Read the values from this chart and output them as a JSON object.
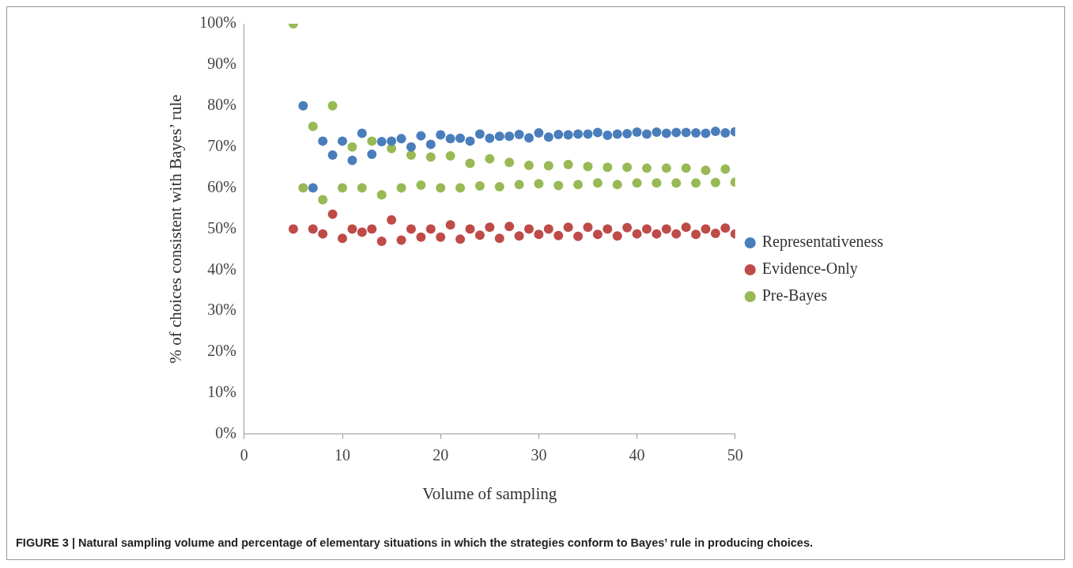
{
  "chart_data": {
    "type": "scatter",
    "xlabel": "Volume of sampling",
    "ylabel": "% of choices consistent with Bayes’ rule",
    "annotations": [
      "FIGURE 3 | Natural sampling volume and percentage of elementary situations in which the strategies conform to Bayes’ rule in producing choices."
    ],
    "xlim": [
      0,
      50
    ],
    "xticks": [
      0,
      10,
      20,
      30,
      40,
      50
    ],
    "ylim": [
      0,
      100
    ],
    "yticks": [
      {
        "value": 0,
        "label": "0%"
      },
      {
        "value": 10,
        "label": "10%"
      },
      {
        "value": 20,
        "label": "20%"
      },
      {
        "value": 30,
        "label": "30%"
      },
      {
        "value": 40,
        "label": "40%"
      },
      {
        "value": 50,
        "label": "50%"
      },
      {
        "value": 60,
        "label": "60%"
      },
      {
        "value": 70,
        "label": "70%"
      },
      {
        "value": 80,
        "label": "80%"
      },
      {
        "value": 90,
        "label": "90%"
      },
      {
        "value": 100,
        "label": "100%"
      }
    ],
    "grid": false,
    "legend": "right",
    "marker": "circle",
    "series": [
      {
        "name": "Representativeness",
        "color": "#4a7ebb",
        "x": [
          6,
          7,
          8,
          9,
          10,
          11,
          12,
          13,
          14,
          15,
          16,
          17,
          18,
          19,
          20,
          21,
          22,
          23,
          24,
          25,
          26,
          27,
          28,
          29,
          30,
          31,
          32,
          33,
          34,
          35,
          36,
          37,
          38,
          39,
          40,
          41,
          42,
          43,
          44,
          45,
          46,
          47,
          48,
          49,
          50
        ],
        "values": [
          80,
          60,
          71.4,
          68,
          71.4,
          66.7,
          73.3,
          68.2,
          71.3,
          71.4,
          72,
          70,
          72.7,
          70.6,
          72.9,
          72,
          72.1,
          71.4,
          73.1,
          72.1,
          72.6,
          72.6,
          73,
          72.2,
          73.4,
          72.4,
          73,
          72.9,
          73.1,
          73.1,
          73.5,
          72.8,
          73.1,
          73.2,
          73.6,
          73.1,
          73.6,
          73.3,
          73.5,
          73.5,
          73.4,
          73.3,
          73.8,
          73.4,
          73.7
        ]
      },
      {
        "name": "Evidence-Only",
        "color": "#be4b48",
        "x": [
          5,
          7,
          8,
          9,
          10,
          11,
          12,
          13,
          14,
          15,
          16,
          17,
          18,
          19,
          20,
          21,
          22,
          23,
          24,
          25,
          26,
          27,
          28,
          29,
          30,
          31,
          32,
          33,
          34,
          35,
          36,
          37,
          38,
          39,
          40,
          41,
          42,
          43,
          44,
          45,
          46,
          47,
          48,
          49,
          50
        ],
        "values": [
          50,
          50,
          48.8,
          53.6,
          47.7,
          50,
          49.2,
          50,
          47,
          52.2,
          47.3,
          50,
          48,
          50,
          48,
          51,
          47.5,
          50,
          48.5,
          50.4,
          47.7,
          50.6,
          48.3,
          50,
          48.7,
          50,
          48.4,
          50.4,
          48.2,
          50.4,
          48.7,
          50,
          48.3,
          50.3,
          48.8,
          50,
          48.8,
          50,
          48.8,
          50.4,
          48.7,
          50,
          48.9,
          50.2,
          48.8
        ]
      },
      {
        "name": "Pre-Bayes",
        "color": "#98b954",
        "x": [
          5,
          6,
          7,
          8,
          9,
          10,
          11,
          12,
          13,
          14,
          15,
          16,
          17,
          18,
          19,
          20,
          21,
          22,
          23,
          24,
          25,
          26,
          27,
          28,
          29,
          30,
          31,
          32,
          33,
          34,
          35,
          36,
          37,
          38,
          39,
          40,
          41,
          42,
          43,
          44,
          45,
          46,
          47,
          48,
          49,
          50
        ],
        "values": [
          100,
          60,
          75,
          57.1,
          80,
          60,
          70,
          60,
          71.4,
          58.3,
          69.6,
          60,
          68,
          60.7,
          67.5,
          60,
          67.8,
          60,
          66,
          60.5,
          67.1,
          60.3,
          66.2,
          60.8,
          65.5,
          61,
          65.4,
          60.6,
          65.7,
          60.8,
          65.2,
          61.2,
          65,
          60.8,
          65,
          61.2,
          64.8,
          61.2,
          64.8,
          61.2,
          64.8,
          61.2,
          64.3,
          61.3,
          64.6,
          61.4
        ]
      }
    ]
  }
}
